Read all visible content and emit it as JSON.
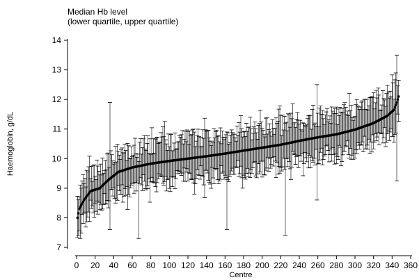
{
  "chart_data": {
    "type": "scatter",
    "title": "Median Hb level",
    "subtitle": "(lower quartile, upper quartile)",
    "xlabel": "Centre",
    "ylabel": "Haemoglobin, g/dL",
    "xlim": [
      0,
      360
    ],
    "ylim": [
      7,
      14
    ],
    "x_ticks": [
      0,
      20,
      40,
      60,
      80,
      100,
      120,
      140,
      160,
      180,
      200,
      220,
      240,
      260,
      280,
      300,
      320,
      340,
      360
    ],
    "y_ticks": [
      7,
      8,
      9,
      10,
      11,
      12,
      13,
      14
    ],
    "grid": false,
    "legend": "none",
    "n_centres": 347,
    "median_anchors": [
      {
        "x": 1,
        "y": 8.0
      },
      {
        "x": 3,
        "y": 8.3
      },
      {
        "x": 8,
        "y": 8.6
      },
      {
        "x": 15,
        "y": 8.9
      },
      {
        "x": 25,
        "y": 9.0
      },
      {
        "x": 35,
        "y": 9.3
      },
      {
        "x": 45,
        "y": 9.55
      },
      {
        "x": 60,
        "y": 9.7
      },
      {
        "x": 80,
        "y": 9.83
      },
      {
        "x": 100,
        "y": 9.92
      },
      {
        "x": 120,
        "y": 10.0
      },
      {
        "x": 140,
        "y": 10.08
      },
      {
        "x": 160,
        "y": 10.17
      },
      {
        "x": 180,
        "y": 10.27
      },
      {
        "x": 200,
        "y": 10.37
      },
      {
        "x": 220,
        "y": 10.47
      },
      {
        "x": 240,
        "y": 10.6
      },
      {
        "x": 260,
        "y": 10.72
      },
      {
        "x": 280,
        "y": 10.82
      },
      {
        "x": 300,
        "y": 10.98
      },
      {
        "x": 320,
        "y": 11.2
      },
      {
        "x": 335,
        "y": 11.45
      },
      {
        "x": 342,
        "y": 11.65
      },
      {
        "x": 345,
        "y": 11.9
      },
      {
        "x": 347,
        "y": 12.1
      }
    ],
    "typical_iqr_halfwidth": [
      0.3,
      1.0
    ],
    "notable_intervals": [
      {
        "x": 36,
        "lower": 7.6,
        "upper": 11.9
      },
      {
        "x": 67,
        "lower": 7.3,
        "upper": 9.9
      },
      {
        "x": 162,
        "lower": 7.6,
        "upper": 10.9
      },
      {
        "x": 225,
        "lower": 7.4,
        "upper": 11.2
      },
      {
        "x": 259,
        "lower": 8.6,
        "upper": 12.5
      },
      {
        "x": 345,
        "lower": 9.25,
        "upper": 13.5
      }
    ],
    "colors": {
      "marker": "#000000",
      "interval": "#000000",
      "axis": "#000000",
      "background": "#ffffff"
    }
  }
}
